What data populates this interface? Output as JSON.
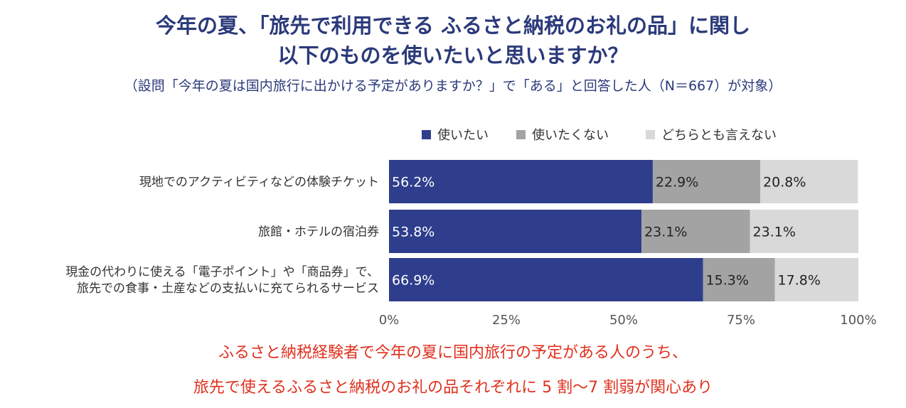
{
  "header": {
    "title_line1": "今年の夏、「旅先で利用できる ふるさと納税のお礼の品」に関し",
    "title_line2": "以下のものを使いたいと思いますか？",
    "subtitle": "（設問「今年の夏は国内旅行に出かける予定がありますか？」で「ある」と回答した人（N＝667）が対象）"
  },
  "chart_data": {
    "type": "bar",
    "orientation": "horizontal",
    "stacked": true,
    "percent": true,
    "legend_position": "top-right",
    "categories": [
      [
        "現地でのアクティビティなどの体験チケット"
      ],
      [
        "旅館・ホテルの宿泊券"
      ],
      [
        "現金の代わりに使える「電子ポイント」や「商品券」で、",
        "旅先での食事・土産などの支払いに充てられるサービス"
      ]
    ],
    "series": [
      {
        "name": "使いたい",
        "color": "#2e3e8c",
        "values": [
          56.2,
          53.8,
          66.9
        ]
      },
      {
        "name": "使いたくない",
        "color": "#a3a3a3",
        "values": [
          22.9,
          23.1,
          15.3
        ]
      },
      {
        "name": "どちらとも言えない",
        "color": "#d9d9d9",
        "values": [
          20.8,
          23.1,
          17.8
        ]
      }
    ],
    "data_labels": [
      [
        "56.2%",
        "53.8%",
        "66.9%"
      ],
      [
        "22.9%",
        "23.1%",
        "15.3%"
      ],
      [
        "20.8%",
        "23.1%",
        "17.8%"
      ]
    ],
    "xlim": [
      0,
      100
    ],
    "xticks": [
      {
        "value": 0,
        "label": "0%"
      },
      {
        "value": 25,
        "label": "25%"
      },
      {
        "value": 50,
        "label": "50%"
      },
      {
        "value": 75,
        "label": "75%"
      },
      {
        "value": 100,
        "label": "100%"
      }
    ]
  },
  "footer": {
    "line1": "ふるさと納税経験者で今年の夏に国内旅行の予定がある人のうち、",
    "line2": "旅先で使えるふるさと納税のお礼の品それぞれに 5 割〜7 割弱が関心あり"
  }
}
